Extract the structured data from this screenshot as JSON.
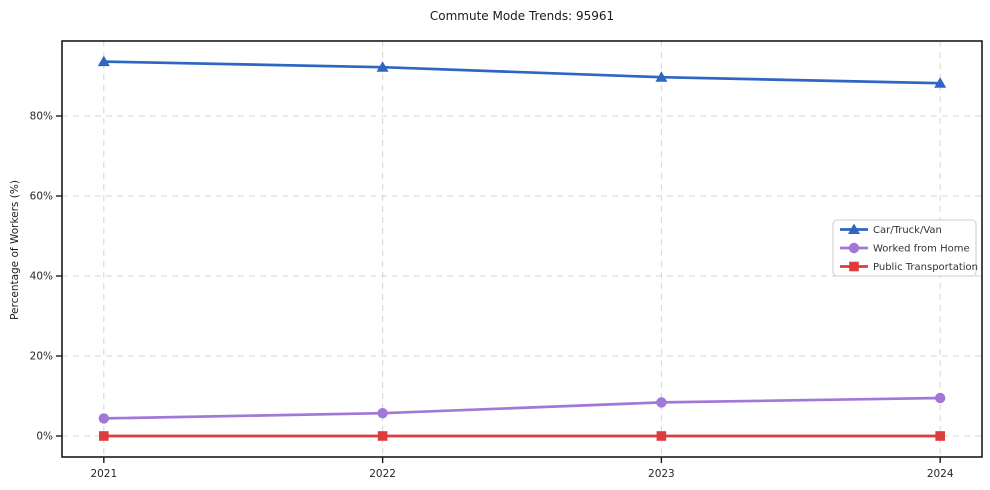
{
  "chart_data": {
    "type": "line",
    "title": "Commute Mode Trends: 95961",
    "xlabel": "",
    "ylabel": "Percentage of Workers (%)",
    "categories": [
      2021,
      2022,
      2023,
      2024
    ],
    "x_tick_labels": [
      "2021",
      "2022",
      "2023",
      "2024"
    ],
    "series": [
      {
        "name": "Car/Truck/Van",
        "marker": "triangle",
        "color": "#2e66c4",
        "values": [
          93.6,
          92.2,
          89.7,
          88.2
        ]
      },
      {
        "name": "Worked from Home",
        "marker": "circle",
        "color": "#a178d8",
        "values": [
          4.4,
          5.7,
          8.4,
          9.5
        ]
      },
      {
        "name": "Public Transportation",
        "marker": "square",
        "color": "#de3c3c",
        "values": [
          0.0,
          0.0,
          0.0,
          0.0
        ]
      }
    ],
    "yticks": [
      0,
      20,
      40,
      60,
      80
    ],
    "ytick_labels": [
      "0%",
      "20%",
      "40%",
      "60%",
      "80%"
    ],
    "ylim": [
      -5.25,
      98.75
    ],
    "xlim": [
      2020.85,
      2024.15
    ],
    "grid": true,
    "grid_color": "#d5d5d5",
    "frame_color": "#1a1a1a",
    "tick_label_color": "#262626",
    "legend_position": "center right",
    "legend_border_color": "#cccccc",
    "legend_text_color": "#333333"
  }
}
